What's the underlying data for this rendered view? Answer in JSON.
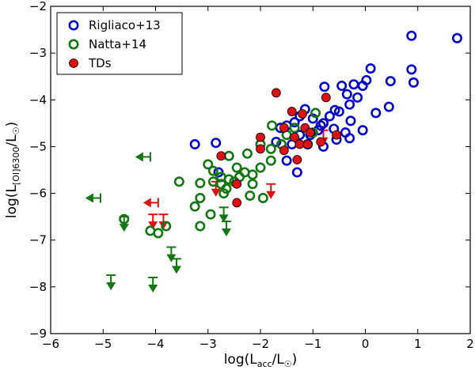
{
  "chart_data": {
    "type": "scatter",
    "xlabel": "log(L",
    "xlabel_sub": "acc",
    "xlabel_mid": "/L",
    "xlabel_sub2": "☉",
    "xlabel_end": ")",
    "ylabel": "log(L",
    "ylabel_sub": "[OI]6300",
    "ylabel_mid": "/L",
    "ylabel_sub2": "☉",
    "ylabel_end": ")",
    "xlim": [
      -6,
      2
    ],
    "ylim": [
      -9,
      -2
    ],
    "xticks": [
      -6,
      -5,
      -4,
      -3,
      -2,
      -1,
      0,
      1,
      2
    ],
    "xtick_labels": [
      "−6",
      "−5",
      "−4",
      "−3",
      "−2",
      "−1",
      "0",
      "1",
      "2"
    ],
    "yticks": [
      -9,
      -8,
      -7,
      -6,
      -5,
      -4,
      -3,
      -2
    ],
    "ytick_labels": [
      "−9",
      "−8",
      "−7",
      "−6",
      "−5",
      "−4",
      "−3",
      "−2"
    ],
    "legend_position": "top-left",
    "series": [
      {
        "name": "Rigliaco+13",
        "color": "#0000cc",
        "marker": "open-circle",
        "points": [
          [
            1.75,
            -2.68
          ],
          [
            0.88,
            -2.63
          ],
          [
            0.88,
            -3.35
          ],
          [
            0.92,
            -3.63
          ],
          [
            0.1,
            -3.33
          ],
          [
            0.02,
            -3.58
          ],
          [
            0.48,
            -3.6
          ],
          [
            -0.05,
            -3.7
          ],
          [
            -0.22,
            -3.67
          ],
          [
            -0.45,
            -3.7
          ],
          [
            -0.78,
            -3.72
          ],
          [
            -0.35,
            -3.88
          ],
          [
            -0.15,
            -3.95
          ],
          [
            0.2,
            -4.28
          ],
          [
            0.45,
            -4.15
          ],
          [
            -0.3,
            -4.1
          ],
          [
            -0.5,
            -4.25
          ],
          [
            -0.28,
            -4.45
          ],
          [
            -0.58,
            -4.22
          ],
          [
            -0.68,
            -4.35
          ],
          [
            -0.8,
            -4.5
          ],
          [
            -1.15,
            -4.2
          ],
          [
            -1.25,
            -4.35
          ],
          [
            -1.35,
            -4.48
          ],
          [
            -1.5,
            -4.55
          ],
          [
            -1.62,
            -4.6
          ],
          [
            -1.7,
            -4.9
          ],
          [
            -1.25,
            -4.75
          ],
          [
            -1.05,
            -4.75
          ],
          [
            -0.9,
            -4.65
          ],
          [
            -0.6,
            -4.62
          ],
          [
            -0.55,
            -4.85
          ],
          [
            -0.3,
            -4.82
          ],
          [
            -0.05,
            -4.65
          ],
          [
            -0.38,
            -4.7
          ],
          [
            -0.85,
            -4.55
          ],
          [
            -1.0,
            -4.4
          ],
          [
            -1.4,
            -4.95
          ],
          [
            -1.5,
            -5.3
          ],
          [
            -1.3,
            -5.55
          ],
          [
            -0.8,
            -5.0
          ],
          [
            -3.25,
            -4.95
          ],
          [
            -2.85,
            -4.92
          ],
          [
            -2.8,
            -5.55
          ],
          [
            -1.1,
            -4.95
          ]
        ]
      },
      {
        "name": "Natta+14",
        "color": "#117711",
        "marker": "open-circle",
        "points": [
          [
            -0.95,
            -4.28
          ],
          [
            -1.78,
            -4.55
          ],
          [
            -2.0,
            -4.95
          ],
          [
            -1.8,
            -5.05
          ],
          [
            -1.8,
            -5.3
          ],
          [
            -2.25,
            -5.15
          ],
          [
            -2.6,
            -5.2
          ],
          [
            -2.0,
            -5.45
          ],
          [
            -2.15,
            -5.6
          ],
          [
            -2.3,
            -5.55
          ],
          [
            -2.4,
            -5.65
          ],
          [
            -2.5,
            -5.75
          ],
          [
            -2.45,
            -5.45
          ],
          [
            -2.6,
            -5.7
          ],
          [
            -2.75,
            -5.65
          ],
          [
            -2.9,
            -5.52
          ],
          [
            -3.0,
            -5.38
          ],
          [
            -2.9,
            -5.75
          ],
          [
            -2.15,
            -5.8
          ],
          [
            -2.65,
            -5.9
          ],
          [
            -2.75,
            -5.8
          ],
          [
            -2.7,
            -6.0
          ],
          [
            -2.2,
            -6.05
          ],
          [
            -1.95,
            -6.1
          ],
          [
            -3.15,
            -5.78
          ],
          [
            -3.55,
            -5.75
          ],
          [
            -3.15,
            -6.1
          ],
          [
            -3.25,
            -6.28
          ],
          [
            -2.95,
            -6.45
          ],
          [
            -3.15,
            -6.7
          ],
          [
            -3.8,
            -6.7
          ],
          [
            -3.95,
            -6.85
          ],
          [
            -4.1,
            -6.8
          ],
          [
            -4.6,
            -6.55
          ],
          [
            -1.5,
            -4.75
          ],
          [
            -1.35,
            -4.6
          ],
          [
            -1.6,
            -4.95
          ],
          [
            -1.0,
            -4.7
          ]
        ]
      },
      {
        "name": "TDs",
        "color": "#dd1111",
        "marker": "filled-circle",
        "points": [
          [
            -1.7,
            -3.85
          ],
          [
            -0.75,
            -3.95
          ],
          [
            -1.4,
            -4.25
          ],
          [
            -1.2,
            -4.3
          ],
          [
            -1.55,
            -4.6
          ],
          [
            -1.15,
            -4.6
          ],
          [
            -1.05,
            -4.7
          ],
          [
            -1.35,
            -4.8
          ],
          [
            -1.25,
            -4.95
          ],
          [
            -0.85,
            -4.9
          ],
          [
            -0.55,
            -4.75
          ],
          [
            -1.1,
            -4.95
          ],
          [
            -2.0,
            -4.8
          ],
          [
            -2.0,
            -5.05
          ],
          [
            -1.55,
            -5.08
          ],
          [
            -1.3,
            -5.28
          ],
          [
            -2.75,
            -5.2
          ],
          [
            -2.45,
            -5.8
          ],
          [
            -2.45,
            -6.2
          ]
        ]
      }
    ],
    "upper_limits": [
      {
        "series": "Natta+14",
        "color": "#117711",
        "points": [
          [
            -4.6,
            -6.5
          ],
          [
            -2.7,
            -6.3
          ],
          [
            -2.65,
            -6.6
          ],
          [
            -3.7,
            -7.15
          ],
          [
            -3.6,
            -7.4
          ],
          [
            -4.85,
            -7.75
          ],
          [
            -4.05,
            -7.8
          ]
        ]
      },
      {
        "series": "TDs",
        "color": "#dd1111",
        "points": [
          [
            -2.85,
            -5.75
          ],
          [
            -1.8,
            -5.8
          ],
          [
            -0.8,
            -4.65
          ],
          [
            -4.05,
            -6.45
          ],
          [
            -3.85,
            -6.45
          ]
        ]
      }
    ],
    "left_limits": [
      {
        "series": "Natta+14",
        "color": "#117711",
        "points": [
          [
            -4.1,
            -5.22
          ],
          [
            -5.05,
            -6.1
          ]
        ]
      },
      {
        "series": "TDs",
        "color": "#dd1111",
        "points": [
          [
            -3.95,
            -6.2
          ]
        ]
      }
    ]
  }
}
